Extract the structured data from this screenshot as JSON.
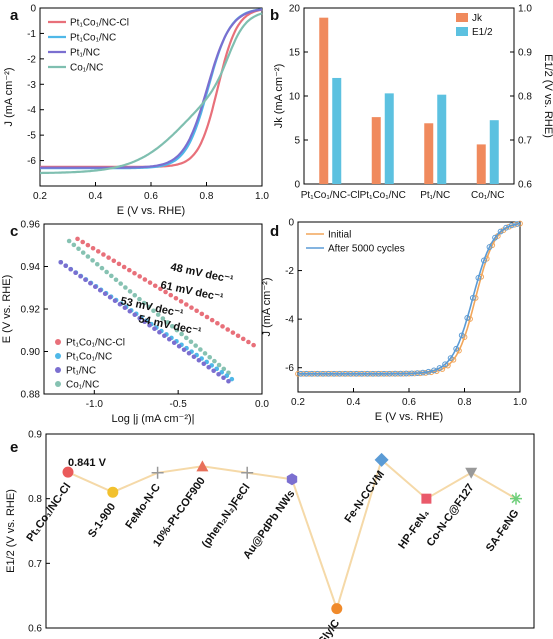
{
  "panels": {
    "a": {
      "letter": "a",
      "type": "line",
      "xlabel": "E (V vs. RHE)",
      "ylabel": "J (mA cm⁻²)",
      "xlim": [
        0.2,
        1.0
      ],
      "ylim": [
        -7,
        0
      ],
      "xticks": [
        "0.2",
        "0.4",
        "0.6",
        "0.8",
        "1.0"
      ],
      "yticks": [
        "-6",
        "-5",
        "-4",
        "-3",
        "-2",
        "-1",
        "0"
      ],
      "legend": [
        "Pt₁Co₁/NC-Cl",
        "Pt₁Co₁/NC",
        "Pt₁/NC",
        "Co₁/NC"
      ],
      "series": [
        {
          "name": "Pt₁Co₁/NC-Cl",
          "color": "#e8707a",
          "jlim": -6.25,
          "e_half": 0.841,
          "width": 0.035
        },
        {
          "name": "Pt₁Co₁/NC",
          "color": "#4fb8e8",
          "jlim": -6.3,
          "e_half": 0.806,
          "width": 0.04
        },
        {
          "name": "Pt₁/NC",
          "color": "#7b6fd0",
          "jlim": -6.28,
          "e_half": 0.803,
          "width": 0.042
        },
        {
          "name": "Co₁/NC",
          "color": "#7fbfb0",
          "jlim": -6.5,
          "e_half": 0.745,
          "width": 0.12
        }
      ]
    },
    "b": {
      "letter": "b",
      "type": "bar",
      "categories": [
        "Pt₁Co₁/NC-Cl",
        "Pt₁Co₁/NC",
        "Pt₁/NC",
        "Co₁/NC"
      ],
      "ylabel_left": "Jk (mA cm⁻²)",
      "ylabel_right": "E1/2 (V vs. RHE)",
      "ylim_left": [
        0,
        20
      ],
      "ylim_right": [
        0.6,
        1.0
      ],
      "yticks_left": [
        "0",
        "5",
        "10",
        "15",
        "20"
      ],
      "yticks_right": [
        "0.6",
        "0.7",
        "0.8",
        "0.9",
        "1.0"
      ],
      "legend": [
        "Jk",
        "E1/2"
      ],
      "series": [
        {
          "name": "Jk",
          "axis": "left",
          "values": [
            18.9,
            7.6,
            6.9,
            4.5
          ],
          "color": "#f08a5d"
        },
        {
          "name": "E1/2",
          "axis": "right",
          "values": [
            0.841,
            0.806,
            0.803,
            0.745
          ],
          "color": "#5cc1e0"
        }
      ]
    },
    "c": {
      "letter": "c",
      "type": "scatter",
      "xlabel": "Log |j (mA cm⁻²)|",
      "ylabel": "E (V vs. RHE)",
      "xlim": [
        -1.3,
        0.0
      ],
      "ylim": [
        0.88,
        0.96
      ],
      "xticks": [
        "-1.0",
        "-0.5",
        "0.0"
      ],
      "yticks": [
        "0.88",
        "0.90",
        "0.92",
        "0.94",
        "0.96"
      ],
      "legend": [
        "Pt₁Co₁/NC-Cl",
        "Pt₁Co₁/NC",
        "Pt₁/NC",
        "Co₁/NC"
      ],
      "annotations": [
        "48 mV dec⁻¹",
        "61 mV dec⁻¹",
        "53 mV dec⁻¹",
        "54 mV dec⁻¹"
      ],
      "series": [
        {
          "name": "Pt₁Co₁/NC-Cl",
          "color": "#e8707a",
          "x0": -1.1,
          "x1": -0.05,
          "y0": 0.953,
          "y1": 0.903
        },
        {
          "name": "Co₁/NC",
          "color": "#86c2b2",
          "x0": -1.15,
          "x1": -0.2,
          "y0": 0.952,
          "y1": 0.89
        },
        {
          "name": "Pt₁Co₁/NC",
          "color": "#4fb8e8",
          "x0": -1.2,
          "x1": -0.18,
          "y0": 0.942,
          "y1": 0.887
        },
        {
          "name": "Pt₁/NC",
          "color": "#7b6fd0",
          "x0": -1.2,
          "x1": -0.2,
          "y0": 0.942,
          "y1": 0.886
        }
      ]
    },
    "d": {
      "letter": "d",
      "type": "line",
      "xlabel": "E (V vs. RHE)",
      "ylabel": "J (mA cm⁻²)",
      "xlim": [
        0.2,
        1.0
      ],
      "ylim": [
        -7,
        0
      ],
      "xticks": [
        "0.2",
        "0.4",
        "0.6",
        "0.8",
        "1.0"
      ],
      "yticks": [
        "-6",
        "-4",
        "-2",
        "0"
      ],
      "legend": [
        "Initial",
        "After 5000 cycles"
      ],
      "series": [
        {
          "name": "Initial",
          "color": "#f2a65a",
          "jlim": -6.25,
          "e_half": 0.84,
          "width": 0.035
        },
        {
          "name": "After 5000 cycles",
          "color": "#5b9bd5",
          "jlim": -6.25,
          "e_half": 0.83,
          "width": 0.037
        }
      ]
    },
    "e": {
      "letter": "e",
      "type": "scatter",
      "ylabel": "E1/2 (V vs. RHE)",
      "ylim": [
        0.6,
        0.9
      ],
      "yticks": [
        "0.6",
        "0.7",
        "0.8",
        "0.9"
      ],
      "highlight": "0.841  V",
      "points": [
        {
          "label": "Pt₁Co₁/NC-Cl",
          "value": 0.841,
          "color": "#ea5a5a",
          "marker": "circle"
        },
        {
          "label": "S-1-900",
          "value": 0.81,
          "color": "#f2c12e",
          "marker": "circle"
        },
        {
          "label": "FeMo-N-C",
          "value": 0.84,
          "color": "#999999",
          "marker": "plus"
        },
        {
          "label": "10%-Pt-COF900",
          "value": 0.85,
          "color": "#e8705a",
          "marker": "triangle"
        },
        {
          "label": "(phen₂N₂)FeCl",
          "value": 0.84,
          "color": "#999999",
          "marker": "plus"
        },
        {
          "label": "Au@PdPb NWs",
          "value": 0.83,
          "color": "#7b6fd0",
          "marker": "hexagon"
        },
        {
          "label": "N-FeGly/C",
          "value": 0.63,
          "color": "#f08a2a",
          "marker": "circle"
        },
        {
          "label": "Fe-N-CCVM",
          "value": 0.86,
          "color": "#5b9bd5",
          "marker": "diamond"
        },
        {
          "label": "HP-FeN₄",
          "value": 0.8,
          "color": "#ea5a6a",
          "marker": "square"
        },
        {
          "label": "Co-N-C@F127",
          "value": 0.84,
          "color": "#999999",
          "marker": "triangle-down"
        },
        {
          "label": "SA-FeNG",
          "value": 0.8,
          "color": "#6fcf7a",
          "marker": "star"
        }
      ]
    }
  }
}
